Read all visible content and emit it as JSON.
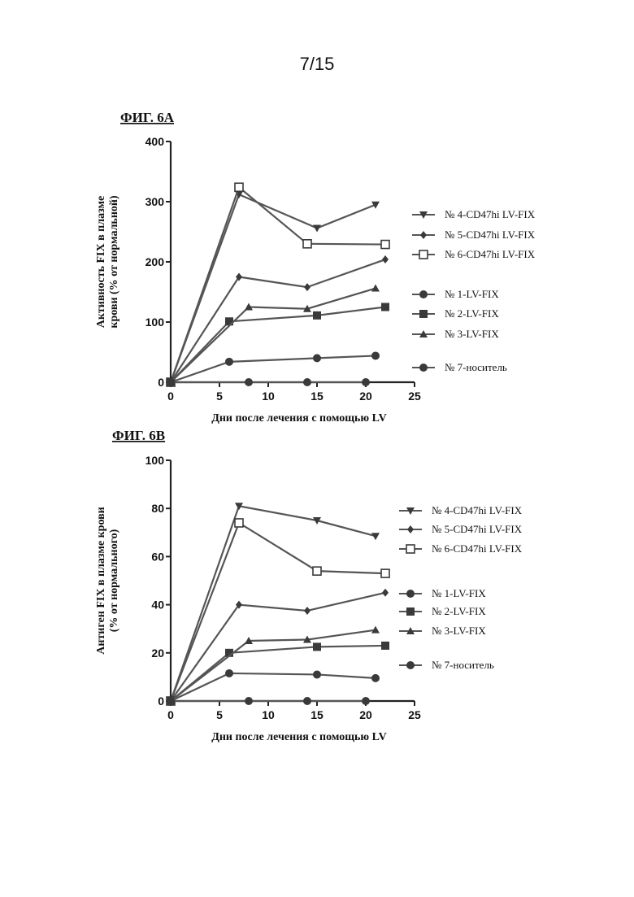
{
  "page_number": "7/15",
  "chart_data": [
    {
      "type": "line",
      "title": "ФИГ. 6A",
      "ylabel_lines": [
        "Активность FIX в плазме",
        "крови (% от нормальной)"
      ],
      "xlabel": "Дни после лечения с помощью LV",
      "xlim": [
        0,
        25
      ],
      "ylim": [
        0,
        400
      ],
      "xticks": [
        0,
        5,
        10,
        15,
        20,
        25
      ],
      "yticks": [
        0,
        100,
        200,
        300,
        400
      ],
      "series": [
        {
          "name": "№ 4-CD47hi LV-FIX",
          "marker": "triangle-down",
          "x": [
            0,
            7,
            15,
            21
          ],
          "y": [
            0,
            312,
            256,
            295
          ]
        },
        {
          "name": "№ 5-CD47hi LV-FIX",
          "marker": "diamond",
          "x": [
            0,
            7,
            14,
            22
          ],
          "y": [
            0,
            175,
            158,
            204
          ]
        },
        {
          "name": "№ 6-CD47hi LV-FIX",
          "marker": "square-open",
          "x": [
            0,
            7,
            14,
            22
          ],
          "y": [
            0,
            324,
            230,
            229
          ]
        },
        {
          "name": "№ 1-LV-FIX",
          "marker": "circle",
          "x": [
            0,
            6,
            15,
            21
          ],
          "y": [
            0,
            34,
            40,
            44
          ]
        },
        {
          "name": "№ 2-LV-FIX",
          "marker": "square",
          "x": [
            0,
            6,
            15,
            22
          ],
          "y": [
            0,
            101,
            111,
            125
          ]
        },
        {
          "name": "№ 3-LV-FIX",
          "marker": "triangle-up",
          "x": [
            0,
            8,
            14,
            21
          ],
          "y": [
            0,
            125,
            122,
            156
          ]
        },
        {
          "name": "№ 7-носитель",
          "marker": "circle",
          "x": [
            0,
            8,
            14,
            20
          ],
          "y": [
            0,
            0,
            0,
            0
          ]
        }
      ]
    },
    {
      "type": "line",
      "title": "ФИГ. 6B",
      "ylabel_lines": [
        "Антиген FIX в плазме крови",
        "(% от нормального)"
      ],
      "xlabel": "Дни после лечения с помощью LV",
      "xlim": [
        0,
        25
      ],
      "ylim": [
        0,
        100
      ],
      "xticks": [
        0,
        5,
        10,
        15,
        20,
        25
      ],
      "yticks": [
        0,
        20,
        40,
        60,
        80,
        100
      ],
      "series": [
        {
          "name": "№ 4-CD47hi LV-FIX",
          "marker": "triangle-down",
          "x": [
            0,
            7,
            15,
            21
          ],
          "y": [
            0,
            81,
            75,
            68.5
          ]
        },
        {
          "name": "№ 5-CD47hi LV-FIX",
          "marker": "diamond",
          "x": [
            0,
            7,
            14,
            22
          ],
          "y": [
            0,
            40,
            37.5,
            45
          ]
        },
        {
          "name": "№ 6-CD47hi LV-FIX",
          "marker": "square-open",
          "x": [
            0,
            7,
            15,
            22
          ],
          "y": [
            0,
            74,
            54,
            53
          ]
        },
        {
          "name": "№ 1-LV-FIX",
          "marker": "circle",
          "x": [
            0,
            6,
            15,
            21
          ],
          "y": [
            0,
            11.5,
            11,
            9.5
          ]
        },
        {
          "name": "№ 2-LV-FIX",
          "marker": "square",
          "x": [
            0,
            6,
            15,
            22
          ],
          "y": [
            0,
            20,
            22.5,
            23
          ]
        },
        {
          "name": "№ 3-LV-FIX",
          "marker": "triangle-up",
          "x": [
            0,
            8,
            14,
            21
          ],
          "y": [
            0,
            25,
            25.5,
            29.5
          ]
        },
        {
          "name": "№ 7-носитель",
          "marker": "circle",
          "x": [
            0,
            8,
            14,
            20
          ],
          "y": [
            0,
            0,
            0,
            0
          ]
        }
      ]
    }
  ]
}
